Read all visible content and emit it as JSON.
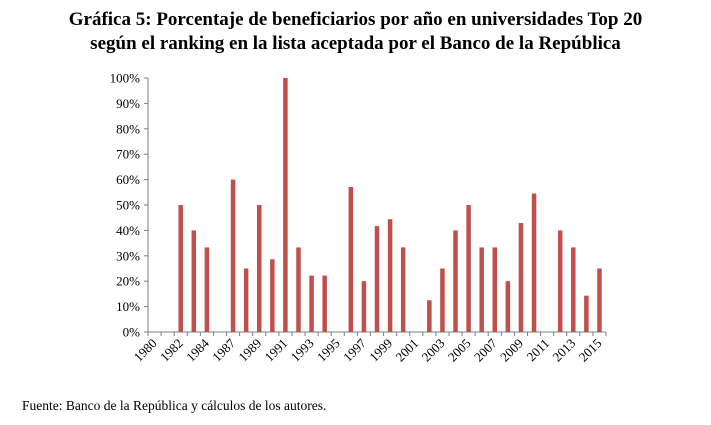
{
  "title_line1": "Gráfica 5: Porcentaje de beneficiarios por año en universidades Top 20",
  "title_line2": "según el ranking en la lista aceptada por el Banco de la República",
  "source": "Fuente: Banco de la República y cálculos de los autores.",
  "chart_data": {
    "type": "bar",
    "title": "Porcentaje de beneficiarios por año en universidades Top 20 según el ranking en la lista aceptada por el Banco de la República",
    "xlabel": "",
    "ylabel": "",
    "ylim": [
      0,
      100
    ],
    "y_tick_labels": [
      "0%",
      "10%",
      "20%",
      "30%",
      "40%",
      "50%",
      "60%",
      "70%",
      "80%",
      "90%",
      "100%"
    ],
    "x_tick_labels": [
      "1980",
      "1982",
      "1984",
      "1987",
      "1989",
      "1991",
      "1993",
      "1995",
      "1997",
      "1999",
      "2001",
      "2003",
      "2005",
      "2007",
      "2009",
      "2011",
      "2013",
      "2015"
    ],
    "bar_color": "#c0504d",
    "values": [
      0,
      0,
      50,
      40,
      33.3,
      0,
      60,
      25,
      50,
      28.6,
      100,
      33.3,
      22.2,
      22.2,
      0,
      57.1,
      20,
      41.7,
      44.4,
      33.3,
      0,
      12.5,
      25,
      40,
      50,
      33.3,
      33.3,
      20,
      42.9,
      54.5,
      0,
      40,
      33.3,
      14.3,
      25
    ]
  }
}
